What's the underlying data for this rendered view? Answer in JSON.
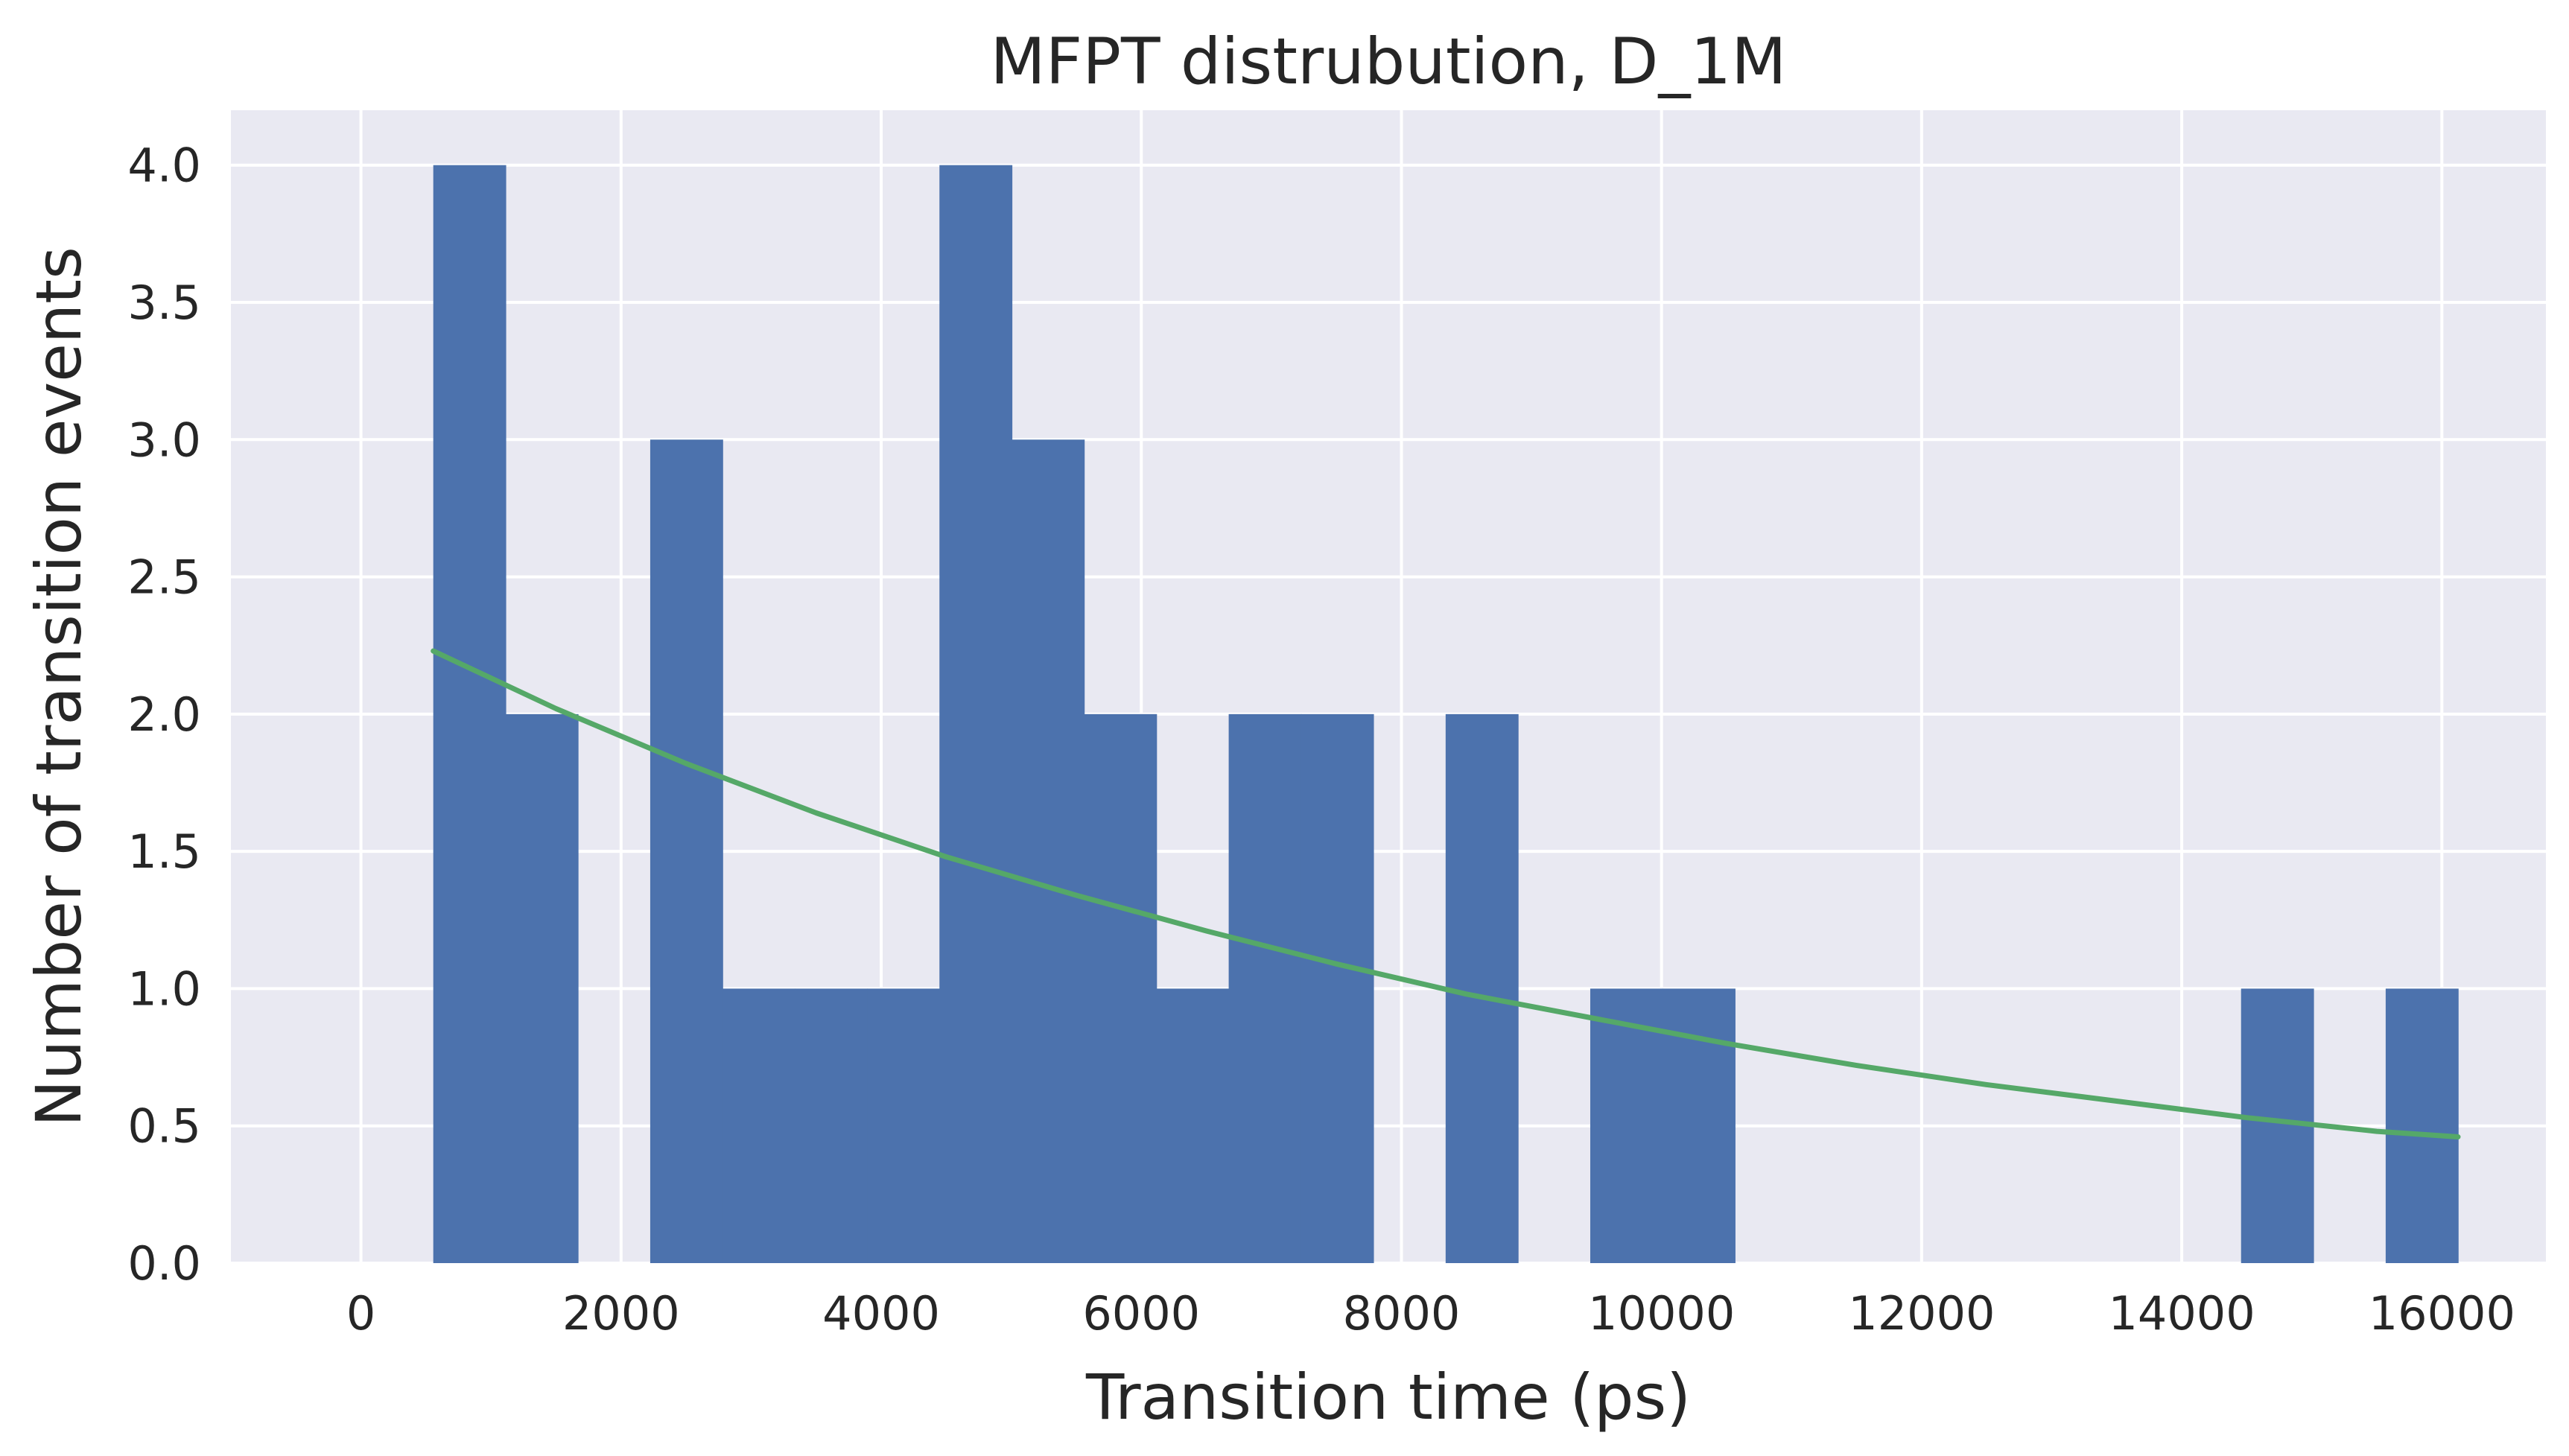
{
  "chart_data": {
    "type": "bar",
    "title": "MFPT distrubution, D_1M",
    "xlabel": "Transition time (ps)",
    "ylabel": "Number of transition events",
    "xlim": [
      -1000,
      16800
    ],
    "ylim": [
      0,
      4.2
    ],
    "xticks": [
      0,
      2000,
      4000,
      6000,
      8000,
      10000,
      12000,
      14000,
      16000
    ],
    "xtick_labels": [
      "0",
      "2000",
      "4000",
      "6000",
      "8000",
      "10000",
      "12000",
      "14000",
      "16000"
    ],
    "yticks": [
      0,
      0.5,
      1,
      1.5,
      2,
      2.5,
      3,
      3.5,
      4
    ],
    "ytick_labels": [
      "0.0",
      "0.5",
      "1.0",
      "1.5",
      "2.0",
      "2.5",
      "3.0",
      "3.5",
      "4.0"
    ],
    "grid": true,
    "histogram": {
      "bin_edges": [
        556,
        1112,
        1668,
        2224,
        2780,
        3336,
        3892,
        4448,
        5004,
        5560,
        6116,
        6672,
        7228,
        7784,
        8340,
        8896,
        9452,
        10008,
        10564,
        11120,
        11676,
        12232,
        12788,
        13344,
        13900,
        14456,
        15012,
        15568,
        16124
      ],
      "counts": [
        4,
        2,
        0,
        3,
        1,
        1,
        1,
        4,
        3,
        2,
        1,
        2,
        2,
        0,
        2,
        0,
        1,
        1,
        0,
        0,
        0,
        0,
        0,
        0,
        0,
        1,
        0,
        1
      ],
      "color": "#4c72ad"
    },
    "series": [
      {
        "type": "line",
        "color": "#55a868",
        "x": [
          556,
          1500,
          2500,
          3500,
          4500,
          5500,
          6500,
          7500,
          8500,
          9500,
          10500,
          11500,
          12500,
          13500,
          14500,
          15500,
          16124
        ],
        "y": [
          2.23,
          2.02,
          1.82,
          1.64,
          1.48,
          1.34,
          1.21,
          1.09,
          0.98,
          0.89,
          0.8,
          0.72,
          0.65,
          0.59,
          0.53,
          0.48,
          0.46
        ]
      }
    ]
  }
}
